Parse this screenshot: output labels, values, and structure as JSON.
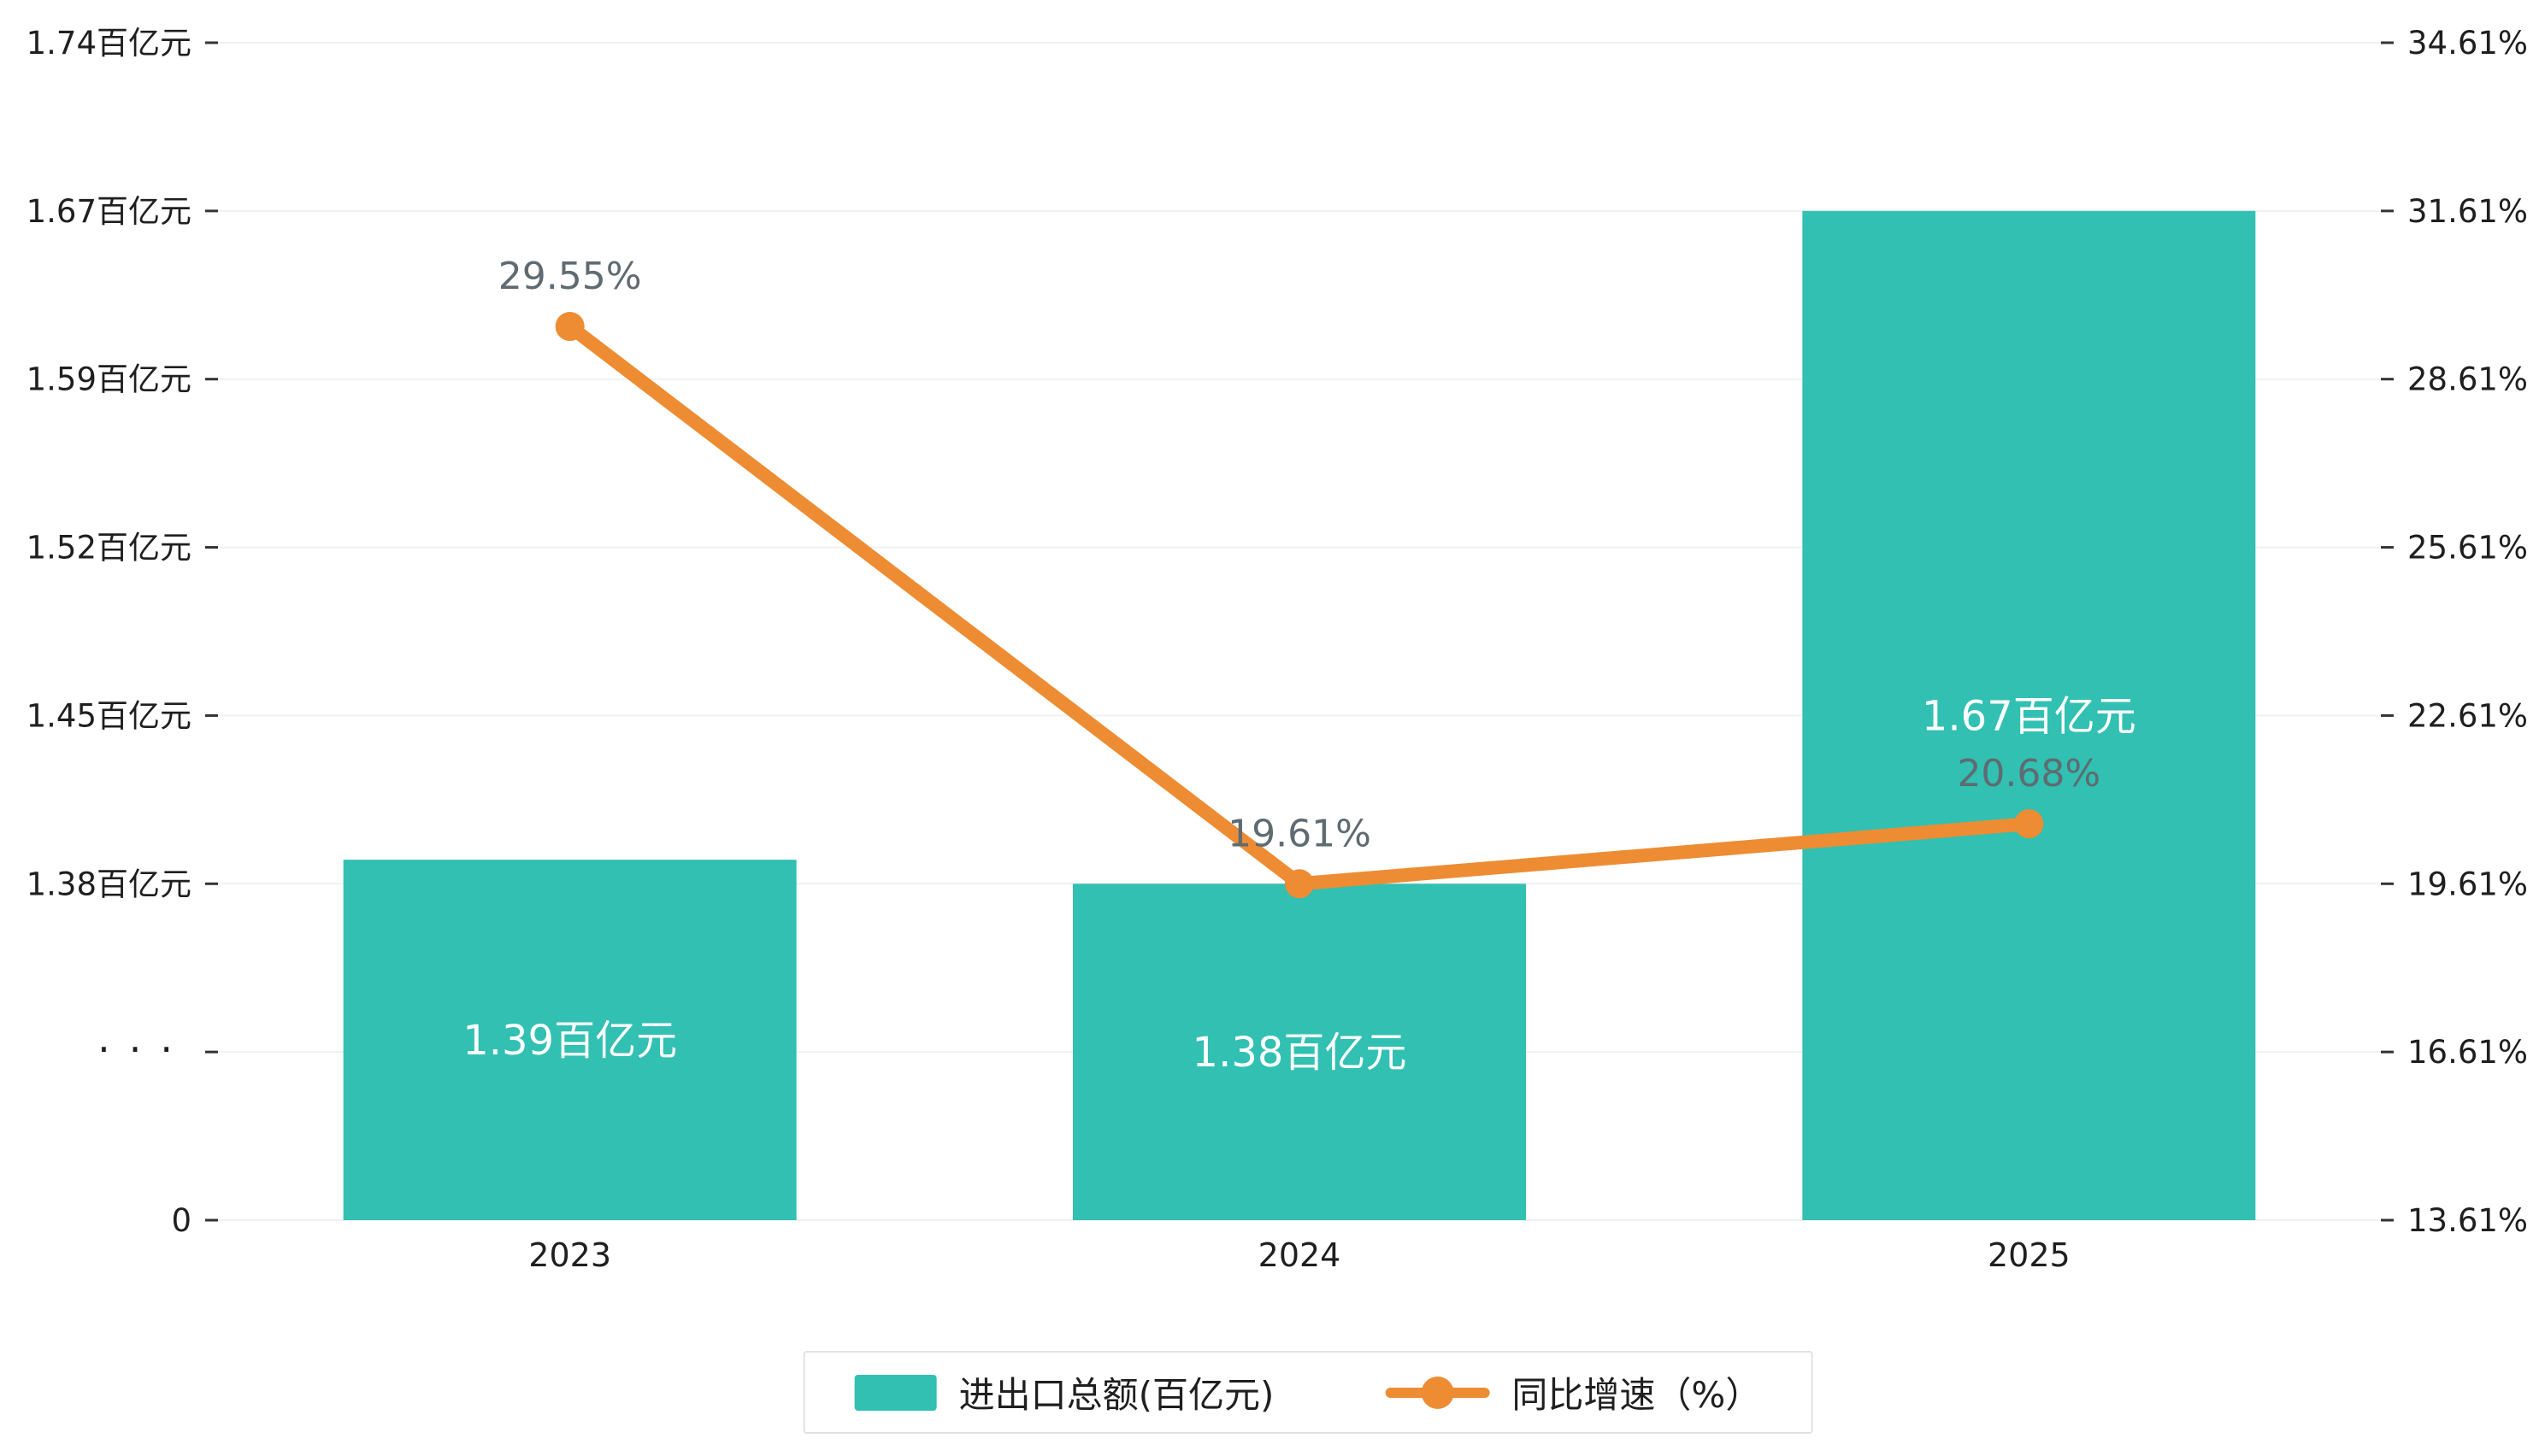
{
  "chart_data": {
    "type": "bar",
    "subtype": "bar-line-combo",
    "categories": [
      "2023",
      "2024",
      "2025"
    ],
    "series": [
      {
        "name": "进出口总额(百亿元)",
        "type": "bar",
        "values": [
          1.39,
          1.38,
          1.67
        ],
        "labels": [
          "1.39百亿元",
          "1.38百亿元",
          "1.67百亿元"
        ],
        "color": "#31c0b2",
        "label_color": "#ffffff"
      },
      {
        "name": "同比增速（%）",
        "type": "line",
        "values": [
          29.55,
          19.61,
          20.68
        ],
        "labels": [
          "29.55%",
          "19.61%",
          "20.68%"
        ],
        "color": "#ee8c33",
        "label_color": "#5f6b70"
      }
    ],
    "left_axis": {
      "tick_labels": [
        "1.74百亿元",
        "1.67百亿元",
        "1.59百亿元",
        "1.52百亿元",
        "1.45百亿元",
        "1.38百亿元",
        "···",
        "0"
      ],
      "tick_values": [
        1.74,
        1.67,
        1.59,
        1.52,
        1.45,
        1.38
      ],
      "has_break": true,
      "baseline_label": "0"
    },
    "right_axis": {
      "tick_labels": [
        "34.61%",
        "31.61%",
        "28.61%",
        "25.61%",
        "22.61%",
        "19.61%",
        "16.61%",
        "13.61%"
      ],
      "tick_values": [
        34.61,
        31.61,
        28.61,
        25.61,
        22.61,
        19.61,
        16.61,
        13.61
      ]
    },
    "x_axis": {
      "labels": [
        "2023",
        "2024",
        "2025"
      ]
    },
    "legend": {
      "position": "bottom-center",
      "items": [
        {
          "label": "进出口总额(百亿元)",
          "marker": "rect",
          "color": "#31c0b2"
        },
        {
          "label": "同比增速（%）",
          "marker": "line-dot",
          "color": "#ee8c33"
        }
      ]
    },
    "grid": true,
    "background": "#ffffff",
    "tick_color": "#333333",
    "axis_text_color": "#1f1f1f",
    "gridline_color": "#f1f1f1"
  }
}
